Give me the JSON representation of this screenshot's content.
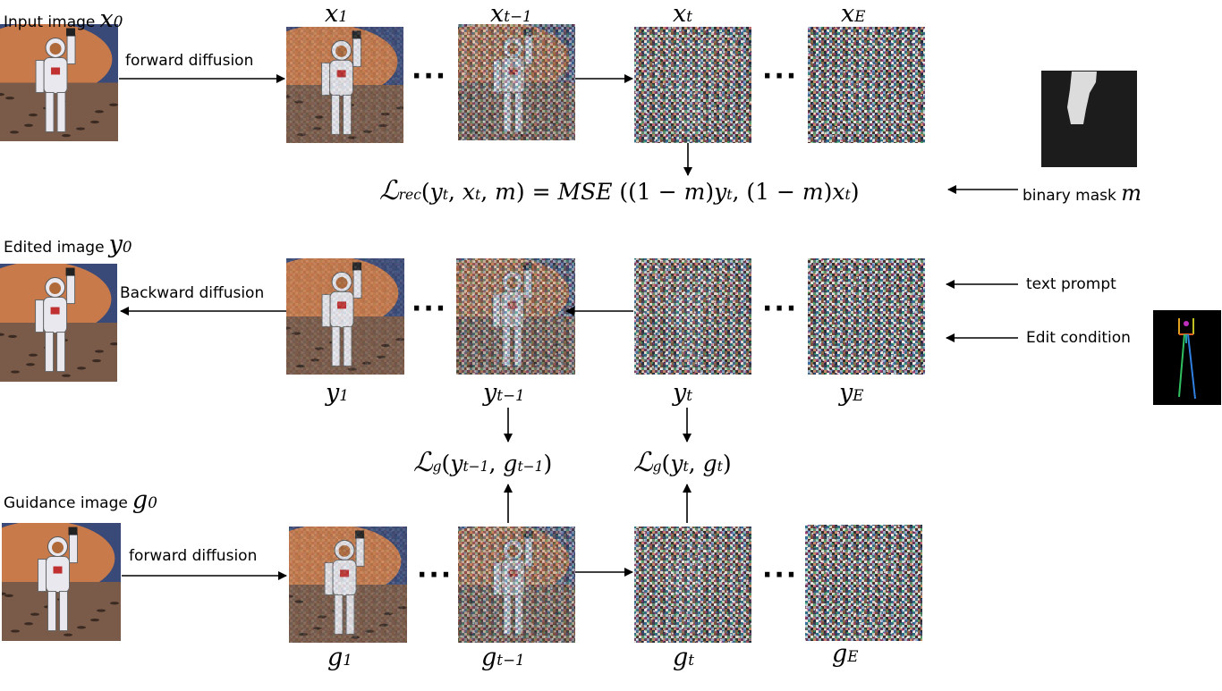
{
  "rows": {
    "input": {
      "caption": "Input image",
      "var": "x",
      "sub": "0",
      "arrow_label": "forward diffusion",
      "steps": [
        {
          "var": "x",
          "sub": "1"
        },
        {
          "var": "x",
          "sub": "t−1"
        },
        {
          "var": "x",
          "sub": "t"
        },
        {
          "var": "x",
          "sub": "E"
        }
      ]
    },
    "edited": {
      "caption": "Edited image",
      "var": "y",
      "sub": "0",
      "arrow_label": "Backward diffusion",
      "steps": [
        {
          "var": "y",
          "sub": "1"
        },
        {
          "var": "y",
          "sub": "t−1"
        },
        {
          "var": "y",
          "sub": "t"
        },
        {
          "var": "y",
          "sub": "E"
        }
      ]
    },
    "guidance": {
      "caption": "Guidance image",
      "var": "g",
      "sub": "0",
      "arrow_label": "forward diffusion",
      "steps": [
        {
          "var": "g",
          "sub": "1"
        },
        {
          "var": "g",
          "sub": "t−1"
        },
        {
          "var": "g",
          "sub": "t"
        },
        {
          "var": "g",
          "sub": "E"
        }
      ]
    }
  },
  "ellipsis": "···",
  "rec_loss": {
    "L": "ℒ",
    "L_sub": "rec",
    "args": "(y",
    "rest": "M S E ((1 − m)y",
    "full_display": "ℒrec(yt, xt, m) = MSE ((1 − m)yt, (1 − m)xt)"
  },
  "mask_label": "binary mask",
  "mask_var": "m",
  "text_prompt_label": "text prompt",
  "edit_condition_label": "Edit condition",
  "guidance_loss_1": "ℒg(yt−1, gt−1)",
  "guidance_loss_2": "ℒg(yt, gt)",
  "colors": {
    "moon": "#c87a4a",
    "sky": "#3a4a78",
    "ground": "#7a5a48",
    "suit": "#e8e8ee",
    "mask_bg": "#1c1c1c",
    "mask_fg": "#dcdcdc",
    "pose_bg": "#000000"
  },
  "icons": [
    "astronaut-image",
    "noise-image",
    "binary-mask-image",
    "pose-skeleton-image"
  ]
}
